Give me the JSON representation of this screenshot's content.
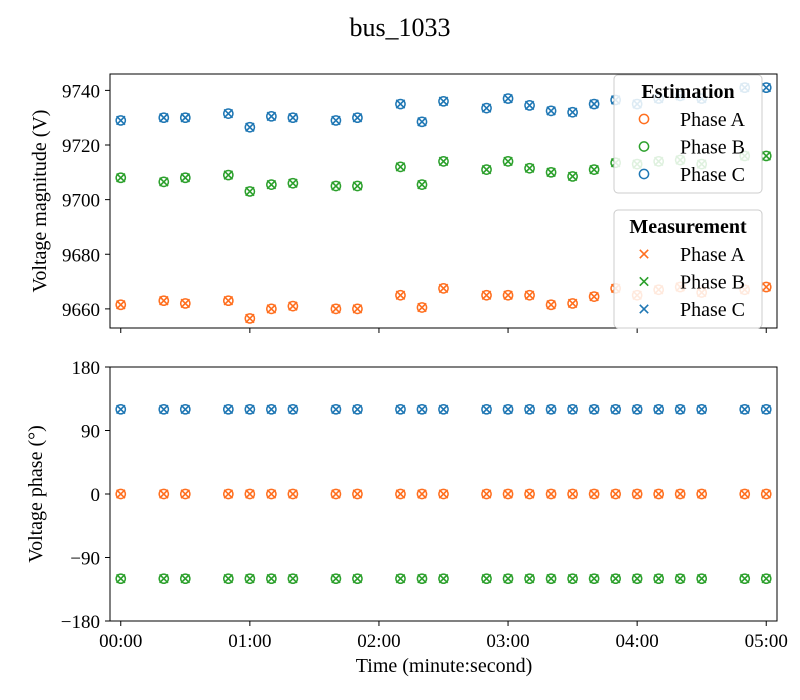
{
  "title": "bus_1033",
  "colors": {
    "phase_a": "#ff6f1f",
    "phase_b": "#2ca02c",
    "phase_c": "#1f77b4"
  },
  "legend_estimation": {
    "title": "Estimation",
    "marker": "circle",
    "items": [
      "Phase A",
      "Phase B",
      "Phase C"
    ]
  },
  "legend_measurement": {
    "title": "Measurement",
    "marker": "x",
    "items": [
      "Phase A",
      "Phase B",
      "Phase C"
    ]
  },
  "chart_data": [
    {
      "type": "scatter",
      "title": "bus_1033",
      "xlabel": "",
      "ylabel": "Voltage magnitude (V)",
      "xlim": [
        "-00:05",
        "05:05"
      ],
      "ylim": [
        9653,
        9746
      ],
      "yticks": [
        9660,
        9680,
        9700,
        9720,
        9740
      ],
      "xticks": [
        "00:00",
        "01:00",
        "02:00",
        "03:00",
        "04:00",
        "05:00"
      ],
      "show_xtick_labels": false,
      "grid": false,
      "legend_placement": "right",
      "x": [
        "00:00",
        "00:20",
        "00:30",
        "00:50",
        "01:00",
        "01:10",
        "01:20",
        "01:40",
        "01:50",
        "02:10",
        "02:20",
        "02:30",
        "02:50",
        "03:00",
        "03:10",
        "03:20",
        "03:30",
        "03:40",
        "03:50",
        "04:00",
        "04:10",
        "04:20",
        "04:30",
        "04:50",
        "05:00"
      ],
      "series": [
        {
          "name": "Phase A",
          "values": [
            9661.5,
            9663,
            9662,
            9663,
            9656.5,
            9660,
            9661,
            9660,
            9660,
            9665,
            9660.5,
            9667.5,
            9665,
            9665,
            9665,
            9661.5,
            9662,
            9664.5,
            9667.5,
            9665,
            9667,
            9668,
            9666,
            9667,
            9668
          ]
        },
        {
          "name": "Phase B",
          "values": [
            9708,
            9706.5,
            9708,
            9709,
            9703,
            9705.5,
            9706,
            9705,
            9705,
            9712,
            9705.5,
            9714,
            9711,
            9714,
            9711.5,
            9710,
            9708.5,
            9711,
            9713.5,
            9713,
            9714,
            9714.5,
            9713,
            9716,
            9716
          ]
        },
        {
          "name": "Phase C",
          "values": [
            9729,
            9730,
            9730,
            9731.5,
            9726.5,
            9730.5,
            9730,
            9729,
            9730,
            9735,
            9728.5,
            9736,
            9733.5,
            9737,
            9734.5,
            9732.5,
            9732,
            9735,
            9736.5,
            9735,
            9737,
            9738,
            9737,
            9741,
            9741
          ]
        }
      ]
    },
    {
      "type": "scatter",
      "xlabel": "Time (minute:second)",
      "ylabel": "Voltage phase (°)",
      "xlim": [
        "-00:05",
        "05:05"
      ],
      "ylim": [
        -180,
        180
      ],
      "yticks": [
        -180,
        -90,
        0,
        90,
        180
      ],
      "xticks": [
        "00:00",
        "01:00",
        "02:00",
        "03:00",
        "04:00",
        "05:00"
      ],
      "grid": false,
      "x": [
        "00:00",
        "00:20",
        "00:30",
        "00:50",
        "01:00",
        "01:10",
        "01:20",
        "01:40",
        "01:50",
        "02:10",
        "02:20",
        "02:30",
        "02:50",
        "03:00",
        "03:10",
        "03:20",
        "03:30",
        "03:40",
        "03:50",
        "04:00",
        "04:10",
        "04:20",
        "04:30",
        "04:50",
        "05:00"
      ],
      "series": [
        {
          "name": "Phase A",
          "values": [
            0,
            0,
            0,
            0,
            0,
            0,
            0,
            0,
            0,
            0,
            0,
            0,
            0,
            0,
            0,
            0,
            0,
            0,
            0,
            0,
            0,
            0,
            0,
            0,
            0
          ]
        },
        {
          "name": "Phase B",
          "values": [
            -120,
            -120,
            -120,
            -120,
            -120,
            -120,
            -120,
            -120,
            -120,
            -120,
            -120,
            -120,
            -120,
            -120,
            -120,
            -120,
            -120,
            -120,
            -120,
            -120,
            -120,
            -120,
            -120,
            -120,
            -120
          ]
        },
        {
          "name": "Phase C",
          "values": [
            120,
            120,
            120,
            120,
            120,
            120,
            120,
            120,
            120,
            120,
            120,
            120,
            120,
            120,
            120,
            120,
            120,
            120,
            120,
            120,
            120,
            120,
            120,
            120,
            120
          ]
        }
      ]
    }
  ]
}
